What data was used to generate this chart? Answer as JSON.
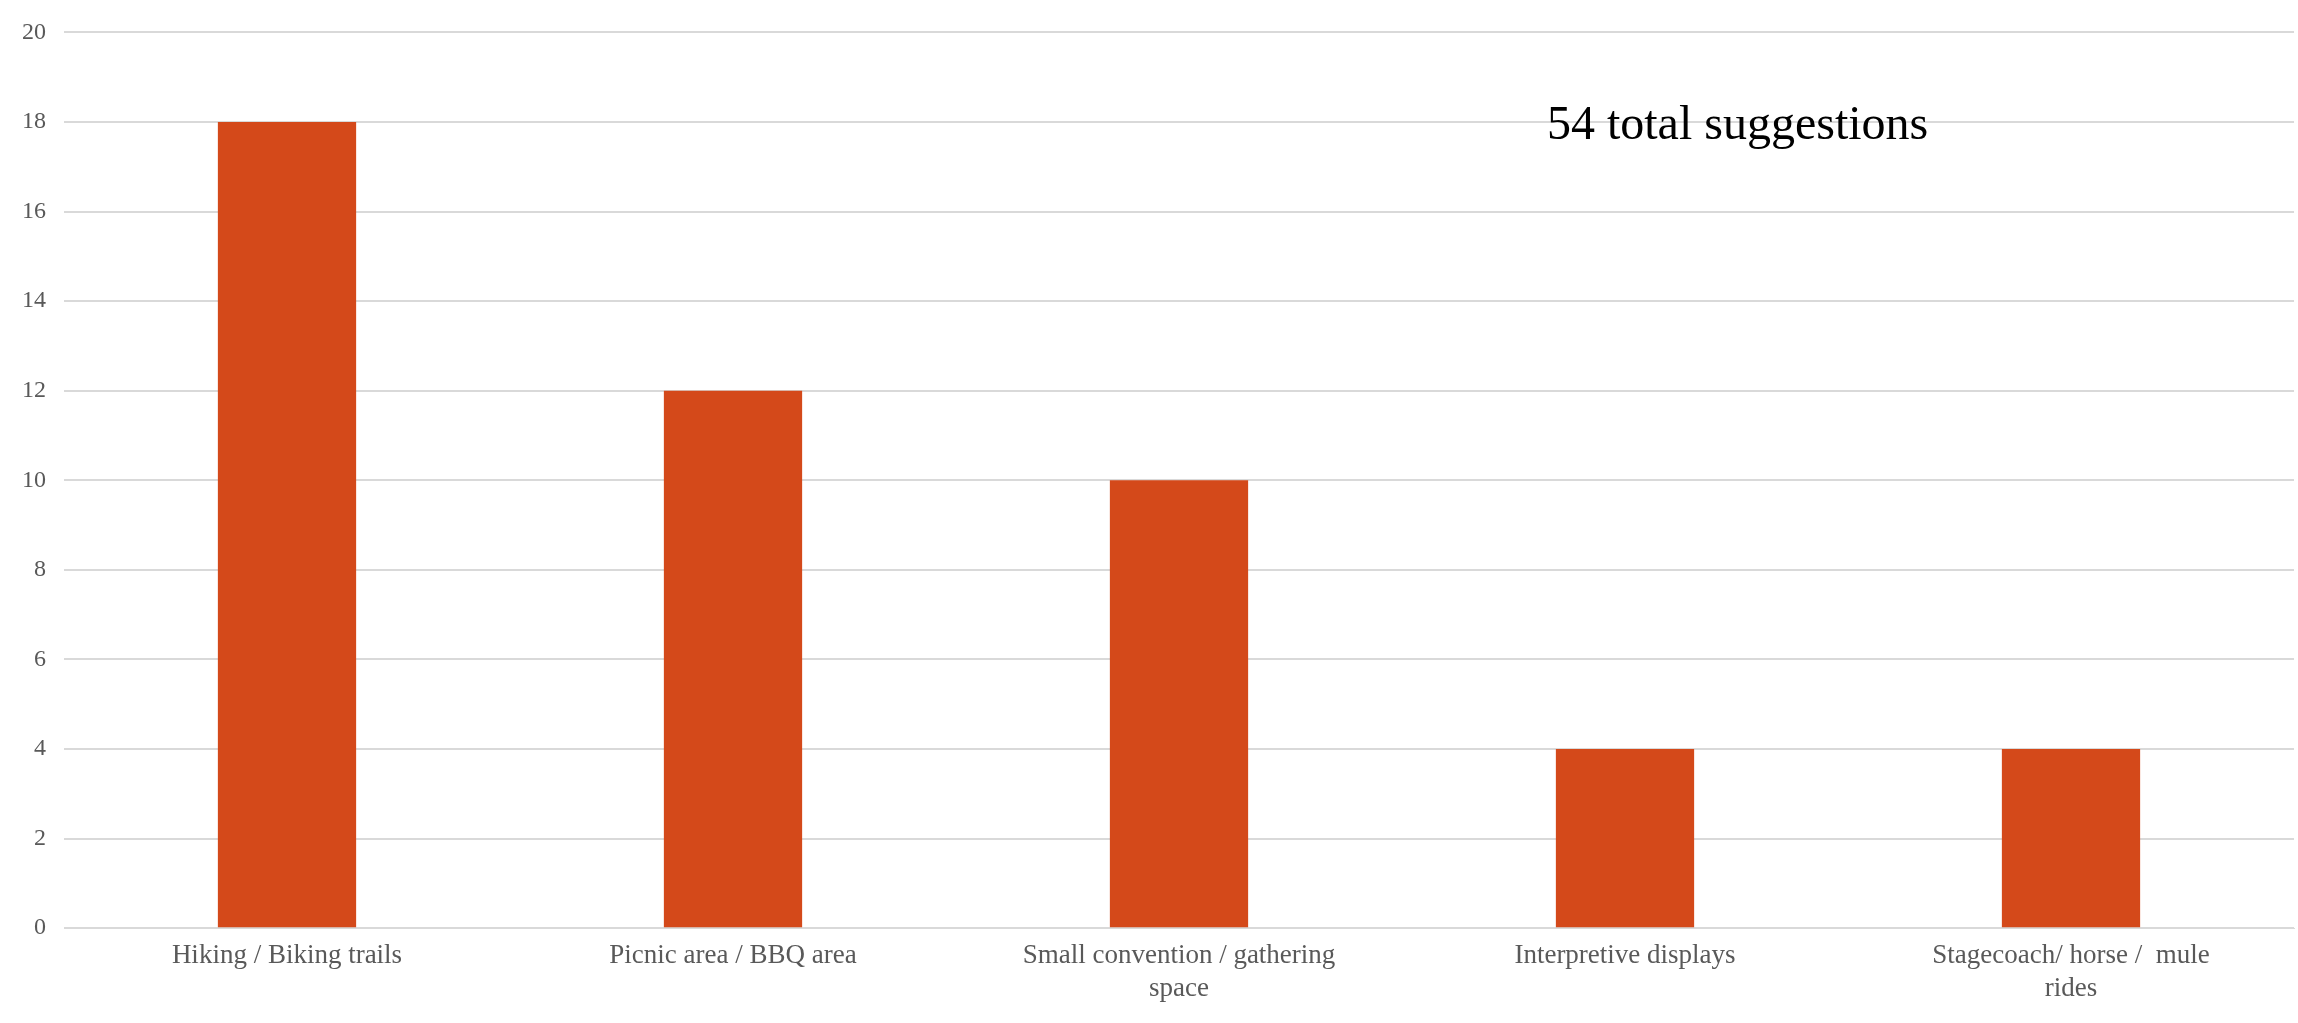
{
  "chart_data": {
    "type": "bar",
    "categories": [
      "Hiking / Biking trails",
      "Picnic area / BBQ area",
      "Small convention / gathering space",
      "Interpretive displays",
      "Stagecoach/ horse /  mule rides"
    ],
    "values": [
      18,
      12,
      10,
      4,
      4
    ],
    "color": "#d4491a",
    "ylim": [
      0,
      20
    ],
    "yticks": [
      0,
      2,
      4,
      6,
      8,
      10,
      12,
      14,
      16,
      18,
      20
    ],
    "grid": "y",
    "legend": false,
    "annotations": [
      "54 total suggestions"
    ]
  }
}
